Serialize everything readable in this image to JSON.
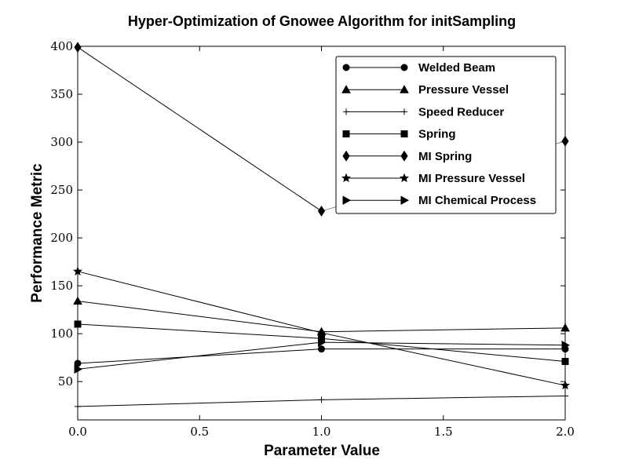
{
  "chart_data": {
    "type": "line",
    "title": "Hyper-Optimization of Gnowee Algorithm for initSampling",
    "xlabel": "Parameter Value",
    "ylabel": "Performance Metric",
    "xlim": [
      0.0,
      2.0
    ],
    "ylim": [
      10,
      400
    ],
    "xticks": [
      0.0,
      0.5,
      1.0,
      1.5,
      2.0
    ],
    "xtick_labels": [
      "0.0",
      "0.5",
      "1.0",
      "1.5",
      "2.0"
    ],
    "yticks": [
      50,
      100,
      150,
      200,
      250,
      300,
      350,
      400
    ],
    "ytick_labels": [
      "50",
      "100",
      "150",
      "200",
      "250",
      "300",
      "350",
      "400"
    ],
    "legend_position": "top-right",
    "grid": false,
    "x": [
      0.0,
      1.0,
      2.0
    ],
    "series": [
      {
        "name": "Welded Beam",
        "marker": "circle",
        "values": [
          69,
          84,
          84
        ]
      },
      {
        "name": "Pressure Vessel",
        "marker": "triangle-up",
        "values": [
          134,
          102,
          106
        ]
      },
      {
        "name": "Speed Reducer",
        "marker": "plus",
        "values": [
          24,
          31,
          35
        ]
      },
      {
        "name": "Spring",
        "marker": "square",
        "values": [
          110,
          95,
          71
        ]
      },
      {
        "name": "MI Spring",
        "marker": "diamond",
        "values": [
          399,
          228,
          301
        ]
      },
      {
        "name": "MI Pressure Vessel",
        "marker": "star",
        "values": [
          165,
          101,
          46
        ]
      },
      {
        "name": "MI Chemical Process",
        "marker": "triangle-right",
        "values": [
          63,
          91,
          88
        ]
      }
    ],
    "line_color": "#000000",
    "highlight_color": "#808080"
  }
}
